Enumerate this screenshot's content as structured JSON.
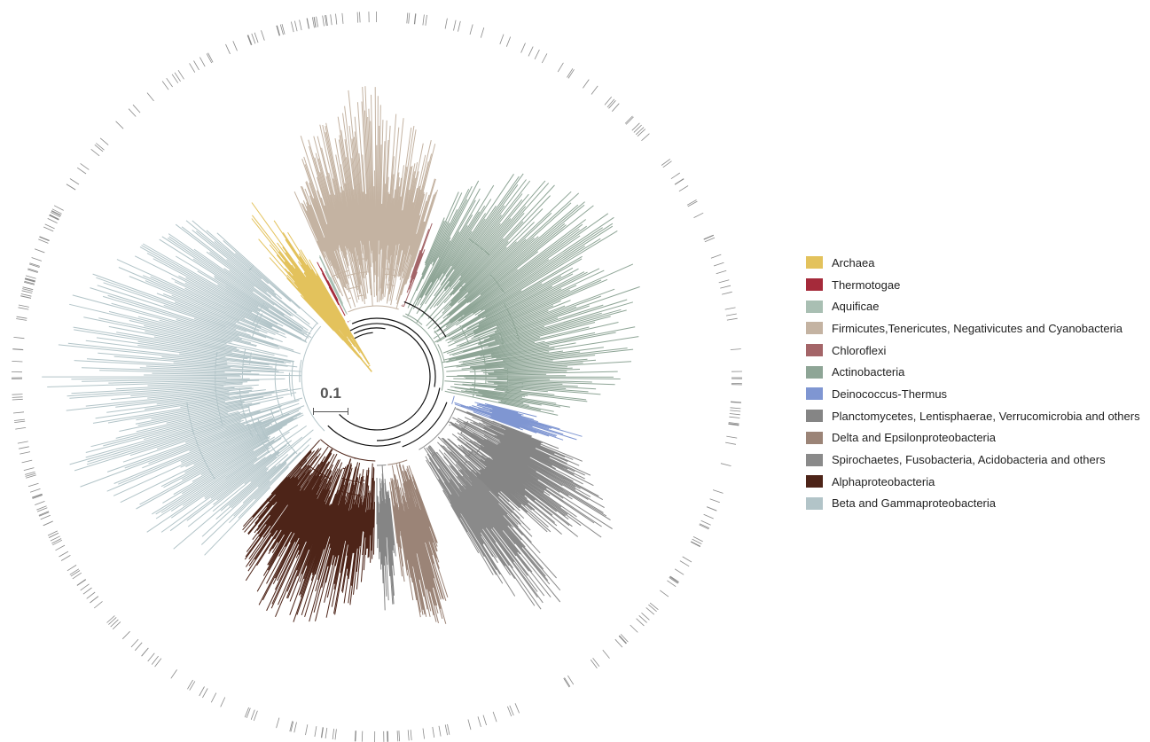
{
  "scale_bar": {
    "label": "0.1"
  },
  "legend": {
    "items": [
      {
        "label": "Archaea",
        "color": "#e3c25c"
      },
      {
        "label": "Thermotogae",
        "color": "#a52a3a"
      },
      {
        "label": "Aquificae",
        "color": "#a9bfb3"
      },
      {
        "label": "Firmicutes,Tenericutes, Negativicutes and Cyanobacteria",
        "color": "#c4b3a2"
      },
      {
        "label": "Chloroflexi",
        "color": "#a46568"
      },
      {
        "label": "Actinobacteria",
        "color": "#8ea596"
      },
      {
        "label": "Deinococcus-Thermus",
        "color": "#7f96d2"
      },
      {
        "label": "Planctomycetes, Lentisphaerae, Verrucomicrobia and others",
        "color": "#858585"
      },
      {
        "label": "Delta and Epsilonproteobacteria",
        "color": "#9b8477"
      },
      {
        "label": "Spirochaetes, Fusobacteria, Acidobacteria and others",
        "color": "#8a8a8a"
      },
      {
        "label": "Alphaproteobacteria",
        "color": "#4d2418"
      },
      {
        "label": "Beta and Gammaproteobacteria",
        "color": "#b2c4c8"
      }
    ]
  },
  "tree": {
    "clades": [
      {
        "group": "Archaea",
        "color": "#e3c25c"
      },
      {
        "group": "Thermotogae",
        "color": "#a52a3a"
      },
      {
        "group": "Aquificae",
        "color": "#a9bfb3"
      },
      {
        "group": "Firmicutes,Tenericutes, Negativicutes and Cyanobacteria",
        "color": "#c4b3a2"
      },
      {
        "group": "Chloroflexi",
        "color": "#a46568"
      },
      {
        "group": "Actinobacteria",
        "color": "#8ea596"
      },
      {
        "group": "Deinococcus-Thermus",
        "color": "#7f96d2"
      },
      {
        "group": "Planctomycetes, Lentisphaerae, Verrucomicrobia and others",
        "color": "#858585"
      },
      {
        "group": "Spirochaetes, Fusobacteria, Acidobacteria and others",
        "color": "#8a8a8a"
      },
      {
        "group": "Delta and Epsilonproteobacteria",
        "color": "#9b8477"
      },
      {
        "group": "Alphaproteobacteria",
        "color": "#4d2418"
      },
      {
        "group": "Beta and Gammaproteobacteria",
        "color": "#b2c4c8"
      }
    ],
    "backbone_color": "#111111",
    "outer_ring_color": "#8a8a8a"
  }
}
